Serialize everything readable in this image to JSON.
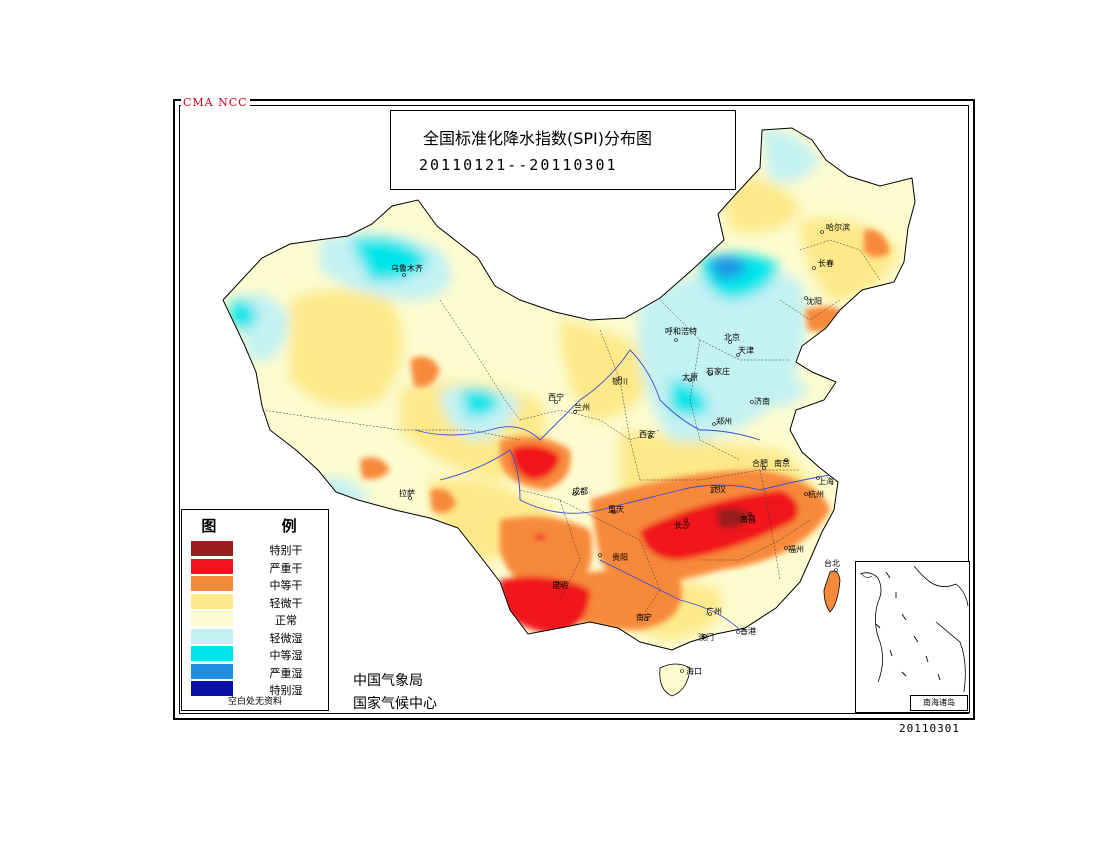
{
  "org_tag": "CMA NCC",
  "title": "全国标准化降水指数(SPI)分布图",
  "period": "20110121--20110301",
  "legend": {
    "title": "图 例",
    "items": [
      {
        "label": "特别干",
        "color": "#9b1c1c"
      },
      {
        "label": "严重干",
        "color": "#f0141e"
      },
      {
        "label": "中等干",
        "color": "#f7893b"
      },
      {
        "label": "轻微干",
        "color": "#fde98a"
      },
      {
        "label": "正常",
        "color": "#fdfcd0"
      },
      {
        "label": "轻微湿",
        "color": "#c4f1f3"
      },
      {
        "label": "中等湿",
        "color": "#00e5ea"
      },
      {
        "label": "严重湿",
        "color": "#1e90e4"
      },
      {
        "label": "特别湿",
        "color": "#0a10a8"
      }
    ],
    "note": "空白处无资料"
  },
  "agency": {
    "line1": "中国气象局",
    "line2": "国家气候中心"
  },
  "inset_label": "南海诸岛",
  "date_stamp": "20110301",
  "cities": {
    "harbin": "哈尔滨",
    "changchun": "长春",
    "shenyang": "沈阳",
    "hohhot": "呼和浩特",
    "beijing": "北京",
    "tianjin": "天津",
    "taiyuan": "太原",
    "shijiazhuang": "石家庄",
    "jinan": "济南",
    "zhengzhou": "郑州",
    "xian": "西安",
    "lanzhou": "兰州",
    "xining": "西宁",
    "yinchuan": "银川",
    "urumqi": "乌鲁木齐",
    "lhasa": "拉萨",
    "chengdu": "成都",
    "chongqing": "重庆",
    "guiyang": "贵阳",
    "kunming": "昆明",
    "nanning": "南宁",
    "guangzhou": "广州",
    "hongkong": "香港",
    "macau": "澳门",
    "haikou": "海口",
    "changsha": "长沙",
    "wuhan": "武汉",
    "nanchang": "南昌",
    "hefei": "合肥",
    "nanjing": "南京",
    "shanghai": "上海",
    "hangzhou": "杭州",
    "fuzhou": "福州",
    "taipei": "台北"
  }
}
